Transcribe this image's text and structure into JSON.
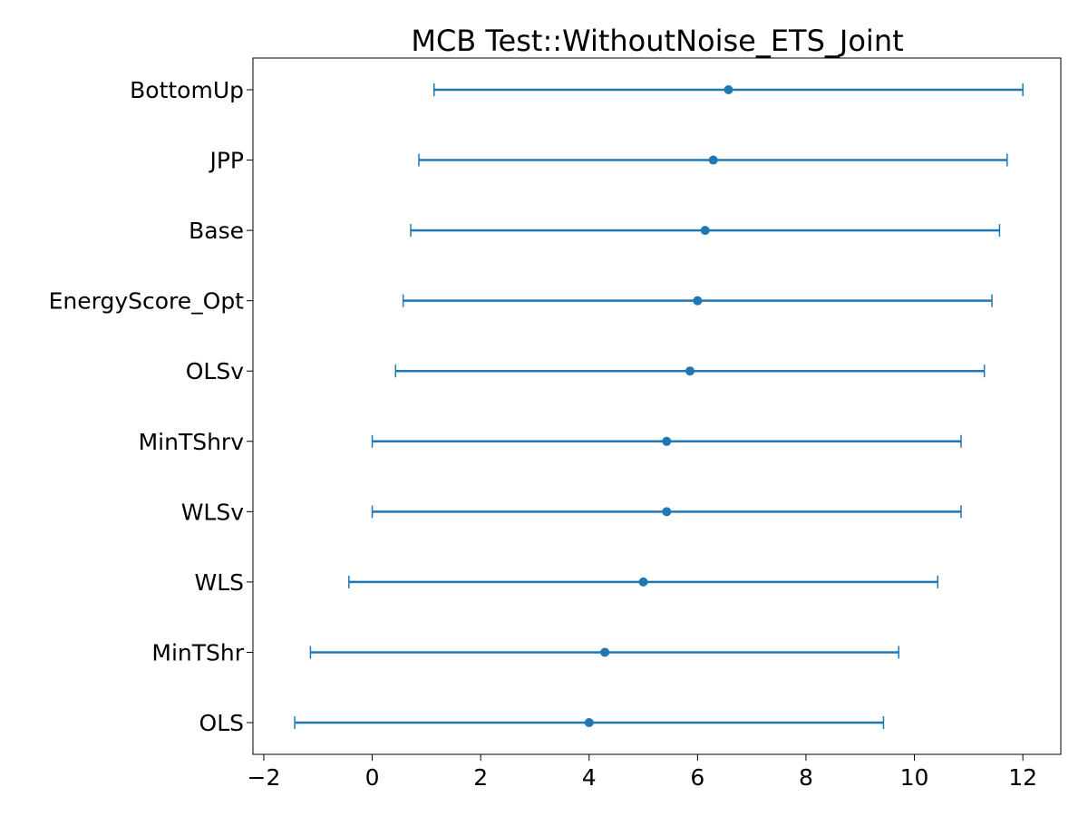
{
  "chart_data": {
    "type": "errorbar",
    "title": "MCB Test::WithoutNoise_ETS_Joint",
    "xlabel": "",
    "ylabel": "",
    "xlim": [
      -2.2,
      12.7
    ],
    "xticks": [
      -2,
      0,
      2,
      4,
      6,
      8,
      10,
      12
    ],
    "grid": false,
    "legend": "none",
    "color": "#1f77b4",
    "categories": [
      "BottomUp",
      "JPP",
      "Base",
      "EnergyScore_Opt",
      "OLSv",
      "MinTShrv",
      "WLSv",
      "WLS",
      "MinTShr",
      "OLS"
    ],
    "series": [
      {
        "center": [
          6.57,
          6.29,
          6.14,
          6.0,
          5.86,
          5.43,
          5.43,
          5.0,
          4.29,
          4.0
        ],
        "lower": [
          1.14,
          0.86,
          0.71,
          0.57,
          0.43,
          0.0,
          0.0,
          -0.43,
          -1.14,
          -1.43
        ],
        "upper": [
          12.0,
          11.71,
          11.57,
          11.43,
          11.29,
          10.86,
          10.86,
          10.43,
          9.71,
          9.43
        ]
      }
    ]
  }
}
